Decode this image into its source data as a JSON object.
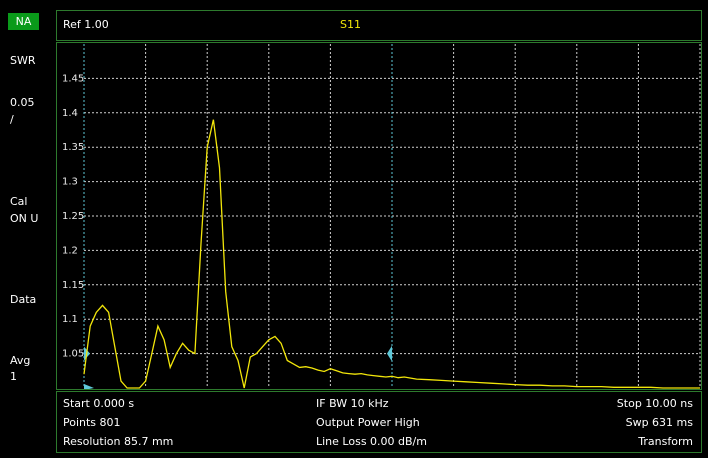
{
  "sidebar": {
    "mode": "NA",
    "format": "SWR",
    "scale_line1": "0.05",
    "scale_line2": "/",
    "cal_line1": "Cal",
    "cal_line2": "ON U",
    "data": "Data",
    "avg_line1": "Avg",
    "avg_line2": "1"
  },
  "header": {
    "ref": "Ref 1.00",
    "trace": "S11"
  },
  "footer": {
    "start": "Start 0.000 s",
    "points": "Points 801",
    "resolution": "Resolution 85.7 mm",
    "if_bw": "IF BW 10 kHz",
    "output_power": "Output Power High",
    "line_loss": "Line Loss 0.00  dB/m",
    "stop": "Stop 10.00 ns",
    "sweep": "Swp 631 ms",
    "transform": "Transform"
  },
  "colors": {
    "trace": "#f2e60a",
    "grid": "#cfcfcf",
    "gate_marker": "#5ec8d8",
    "frame": "#2d7a2d",
    "mode_badge": "#0a9a1a"
  },
  "chart_data": {
    "type": "line",
    "xlabel": "",
    "ylabel": "",
    "xlim": [
      0,
      10
    ],
    "x_unit": "ns",
    "ylim": [
      1.0,
      1.5
    ],
    "yticks": [
      1.05,
      1.1,
      1.15,
      1.2,
      1.25,
      1.3,
      1.35,
      1.4,
      1.45
    ],
    "ytick_labels": [
      "1.05",
      "1.1",
      "1.15",
      "1.2",
      "1.25",
      "1.3",
      "1.35",
      "1.4",
      "1.45"
    ],
    "grid": true,
    "gate_start_ns": 0.0,
    "gate_stop_ns": 5.0,
    "series": [
      {
        "x": [
          0.0,
          0.1,
          0.2,
          0.3,
          0.4,
          0.5,
          0.6,
          0.7,
          0.8,
          0.9,
          1.0,
          1.1,
          1.2,
          1.3,
          1.4,
          1.5,
          1.6,
          1.7,
          1.8,
          1.9,
          2.0,
          2.1,
          2.2,
          2.3,
          2.4,
          2.5,
          2.6,
          2.7,
          2.8,
          2.9,
          3.0,
          3.1,
          3.2,
          3.3,
          3.4,
          3.5,
          3.6,
          3.7,
          3.8,
          3.9,
          4.0,
          4.1,
          4.2,
          4.3,
          4.4,
          4.5,
          4.6,
          4.7,
          4.8,
          4.9,
          5.0,
          5.1,
          5.2,
          5.4,
          5.6,
          5.8,
          6.0,
          6.2,
          6.4,
          6.6,
          6.8,
          7.0,
          7.2,
          7.4,
          7.6,
          7.8,
          8.0,
          8.2,
          8.4,
          8.6,
          8.8,
          9.0,
          9.2,
          9.4,
          9.6,
          9.8,
          10.0
        ],
        "y": [
          1.02,
          1.09,
          1.11,
          1.12,
          1.11,
          1.06,
          1.01,
          1.0,
          1.0,
          1.0,
          1.01,
          1.05,
          1.09,
          1.07,
          1.03,
          1.05,
          1.065,
          1.055,
          1.05,
          1.21,
          1.35,
          1.39,
          1.32,
          1.14,
          1.06,
          1.04,
          1.0,
          1.045,
          1.05,
          1.06,
          1.07,
          1.075,
          1.065,
          1.04,
          1.035,
          1.03,
          1.031,
          1.029,
          1.026,
          1.024,
          1.028,
          1.025,
          1.022,
          1.021,
          1.02,
          1.021,
          1.019,
          1.018,
          1.017,
          1.016,
          1.017,
          1.015,
          1.016,
          1.013,
          1.012,
          1.011,
          1.01,
          1.009,
          1.008,
          1.007,
          1.006,
          1.005,
          1.004,
          1.004,
          1.003,
          1.003,
          1.002,
          1.002,
          1.002,
          1.001,
          1.001,
          1.001,
          1.001,
          1.0,
          1.0,
          1.0,
          1.0
        ]
      }
    ]
  }
}
